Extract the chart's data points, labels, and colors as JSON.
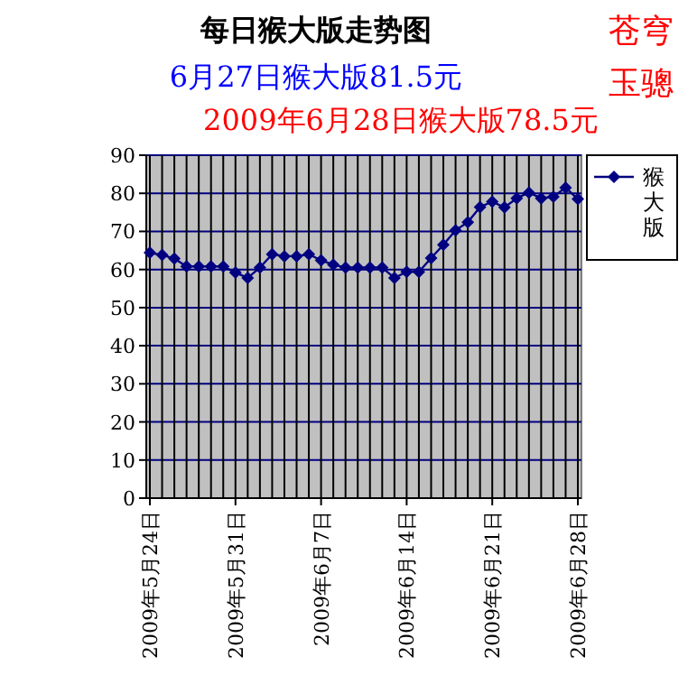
{
  "chart_data": {
    "type": "line",
    "title": "每日猴大版走势图",
    "subtitle": "6月27日猴大版81.5元",
    "annotations": [
      "2009年6月28日猴大版78.5元",
      "苍穹",
      "玉骢"
    ],
    "x": [
      "2009-05-24",
      "2009-05-25",
      "2009-05-26",
      "2009-05-27",
      "2009-05-28",
      "2009-05-29",
      "2009-05-30",
      "2009-05-31",
      "2009-06-01",
      "2009-06-02",
      "2009-06-03",
      "2009-06-04",
      "2009-06-05",
      "2009-06-06",
      "2009-06-07",
      "2009-06-08",
      "2009-06-09",
      "2009-06-10",
      "2009-06-11",
      "2009-06-12",
      "2009-06-13",
      "2009-06-14",
      "2009-06-15",
      "2009-06-16",
      "2009-06-17",
      "2009-06-18",
      "2009-06-19",
      "2009-06-20",
      "2009-06-21",
      "2009-06-22",
      "2009-06-23",
      "2009-06-24",
      "2009-06-25",
      "2009-06-26",
      "2009-06-27",
      "2009-06-28"
    ],
    "series": [
      {
        "name": "猴大版",
        "color": "#000080",
        "values": [
          64.4,
          63.8,
          62.9,
          60.8,
          60.8,
          60.8,
          60.8,
          59.2,
          57.8,
          60.5,
          64,
          63.5,
          63.5,
          64,
          62.4,
          61.3,
          60.5,
          60.5,
          60.5,
          60.5,
          57.8,
          59.4,
          59.4,
          63,
          66.5,
          70.3,
          72.4,
          76.4,
          77.8,
          76.3,
          78.7,
          80.2,
          78.7,
          79.1,
          81.5,
          78.5
        ]
      }
    ],
    "xlim": [
      "2009-05-24",
      "2009-06-28"
    ],
    "xticks": [
      {
        "value": "2009-05-24",
        "label": "2009年5月24日"
      },
      {
        "value": "2009-05-31",
        "label": "2009年5月31日"
      },
      {
        "value": "2009-06-07",
        "label": "2009年6月7日"
      },
      {
        "value": "2009-06-14",
        "label": "2009年6月14日"
      },
      {
        "value": "2009-06-21",
        "label": "2009年6月21日"
      },
      {
        "value": "2009-06-28",
        "label": "2009年6月28日"
      }
    ],
    "ylim": [
      0,
      90
    ],
    "yticks": [
      0,
      10,
      20,
      30,
      40,
      50,
      60,
      70,
      80,
      90
    ],
    "grid": true,
    "legend": "top right",
    "marker": "diamond",
    "line_style": "solid"
  }
}
